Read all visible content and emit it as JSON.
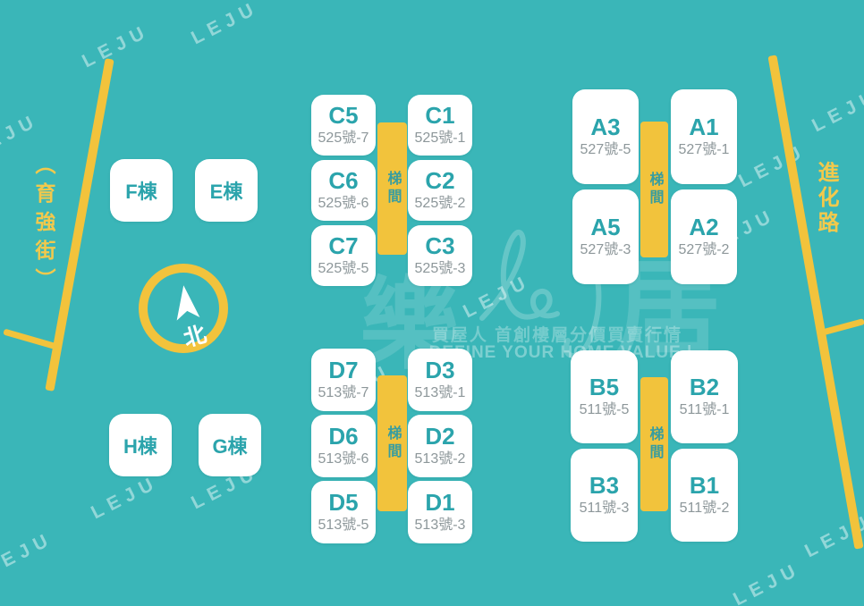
{
  "brand": {
    "watermark_text": "LEJU",
    "logo_left": "樂",
    "logo_right": "居",
    "slogan_zh": "買屋人 首創樓層分價買賣行情",
    "slogan_en": "DEFINE YOUR HOME VALUE |"
  },
  "map": {
    "north_label": "北",
    "street_left": "（育強街）",
    "street_right": "進化路"
  },
  "towers": [
    {
      "id": "F",
      "label": "F棟"
    },
    {
      "id": "E",
      "label": "E棟"
    },
    {
      "id": "H",
      "label": "H棟"
    },
    {
      "id": "G",
      "label": "G棟"
    }
  ],
  "clusters": [
    {
      "id": "C",
      "stairwell_label": "梯間",
      "columns": [
        [
          {
            "label": "C5",
            "address": "525號-7"
          },
          {
            "label": "C6",
            "address": "525號-6"
          },
          {
            "label": "C7",
            "address": "525號-5"
          }
        ],
        [
          {
            "label": "C1",
            "address": "525號-1"
          },
          {
            "label": "C2",
            "address": "525號-2"
          },
          {
            "label": "C3",
            "address": "525號-3"
          }
        ]
      ]
    },
    {
      "id": "A",
      "stairwell_label": "梯間",
      "columns": [
        [
          {
            "label": "A3",
            "address": "527號-5"
          },
          {
            "label": "A5",
            "address": "527號-3"
          }
        ],
        [
          {
            "label": "A1",
            "address": "527號-1"
          },
          {
            "label": "A2",
            "address": "527號-2"
          }
        ]
      ]
    },
    {
      "id": "D",
      "stairwell_label": "梯間",
      "columns": [
        [
          {
            "label": "D7",
            "address": "513號-7"
          },
          {
            "label": "D6",
            "address": "513號-6"
          },
          {
            "label": "D5",
            "address": "513號-5"
          }
        ],
        [
          {
            "label": "D3",
            "address": "513號-1"
          },
          {
            "label": "D2",
            "address": "513號-2"
          },
          {
            "label": "D1",
            "address": "513號-3"
          }
        ]
      ]
    },
    {
      "id": "B",
      "stairwell_label": "梯間",
      "columns": [
        [
          {
            "label": "B5",
            "address": "511號-5"
          },
          {
            "label": "B3",
            "address": "511號-3"
          }
        ],
        [
          {
            "label": "B2",
            "address": "511號-1"
          },
          {
            "label": "B1",
            "address": "511號-2"
          }
        ]
      ]
    }
  ],
  "colors": {
    "background": "#3ab6b8",
    "accent_yellow": "#f2c33c",
    "unit_text": "#2ba4ac",
    "address_text": "#8d979a",
    "box": "#ffffff"
  }
}
